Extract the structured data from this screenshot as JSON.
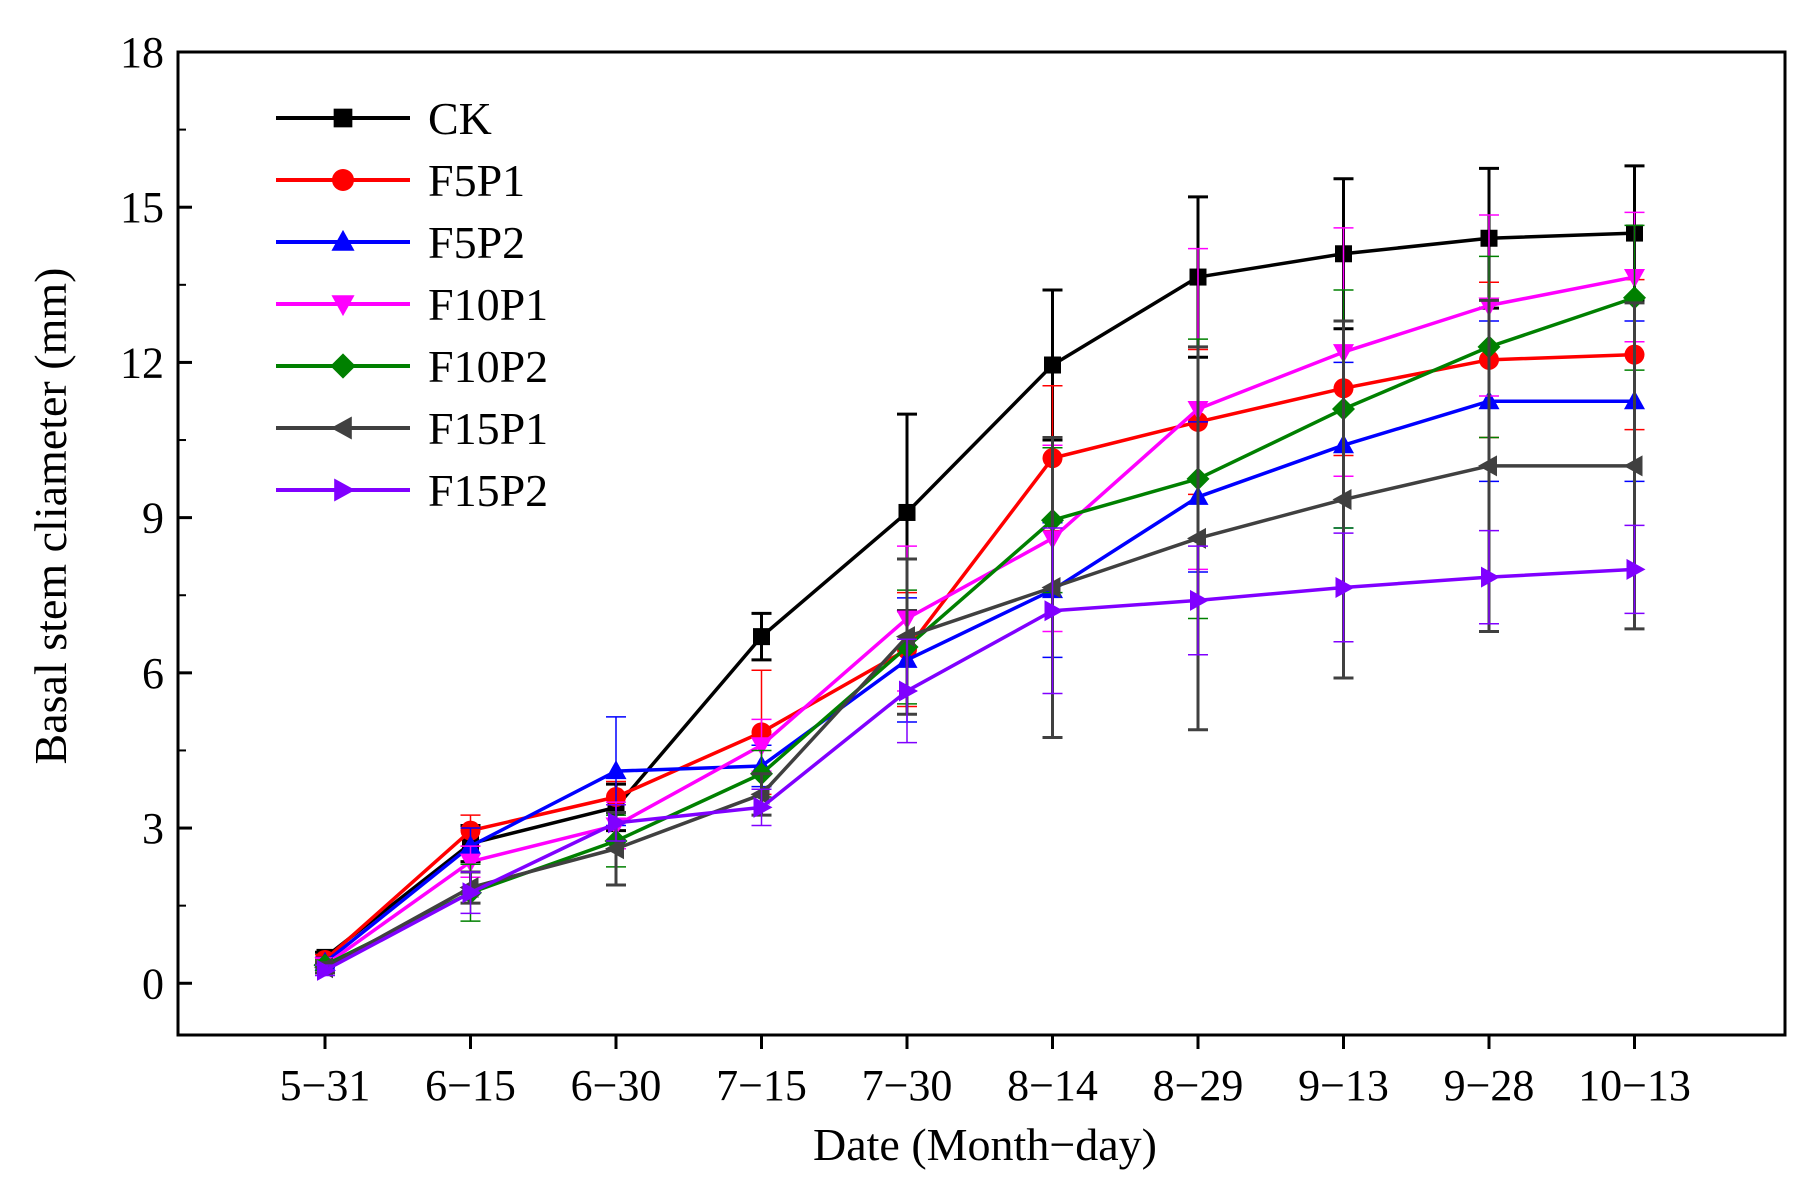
{
  "chart_data": {
    "type": "line",
    "xlabel": "Date (Month−day)",
    "ylabel": "Basal stem cliameter (mm)",
    "ylim": [
      -1,
      18
    ],
    "yticks": [
      0,
      3,
      6,
      9,
      12,
      15,
      18
    ],
    "ytick_labels": [
      "0",
      "3",
      "6",
      "9",
      "12",
      "15",
      "18"
    ],
    "categories": [
      "5−31",
      "6−15",
      "6−30",
      "7−15",
      "7−30",
      "8−14",
      "8−29",
      "9−13",
      "9−28",
      "10−13"
    ],
    "legend_position": "top-left",
    "series": [
      {
        "name": "CK",
        "color": "#000000",
        "marker": "square",
        "values": [
          0.5,
          2.7,
          3.4,
          6.7,
          9.1,
          11.95,
          13.65,
          14.1,
          14.4,
          14.5
        ],
        "errors": [
          0.1,
          0.35,
          0.45,
          0.45,
          1.9,
          1.45,
          1.55,
          1.45,
          1.35,
          1.3
        ]
      },
      {
        "name": "F5P1",
        "color": "#ff0000",
        "marker": "circle",
        "values": [
          0.45,
          2.95,
          3.6,
          4.85,
          6.45,
          10.15,
          10.85,
          11.5,
          12.05,
          12.15
        ],
        "errors": [
          0.1,
          0.3,
          0.3,
          1.2,
          1.1,
          1.4,
          1.4,
          1.3,
          1.5,
          1.45
        ]
      },
      {
        "name": "F5P2",
        "color": "#0000ff",
        "marker": "triangle-up",
        "values": [
          0.4,
          2.65,
          4.1,
          4.2,
          6.25,
          7.6,
          9.4,
          10.4,
          11.25,
          11.25
        ],
        "errors": [
          0.1,
          0.35,
          1.05,
          0.4,
          1.2,
          1.3,
          1.45,
          1.6,
          1.55,
          1.55
        ]
      },
      {
        "name": "F10P1",
        "color": "#ff00ff",
        "marker": "triangle-down",
        "values": [
          0.35,
          2.35,
          3.05,
          4.6,
          7.05,
          8.6,
          11.1,
          12.2,
          13.1,
          13.65
        ],
        "errors": [
          0.1,
          0.3,
          0.45,
          0.5,
          1.4,
          1.8,
          3.1,
          2.4,
          1.75,
          1.25
        ]
      },
      {
        "name": "F10P2",
        "color": "#008000",
        "marker": "diamond",
        "values": [
          0.35,
          1.75,
          2.75,
          4.05,
          6.5,
          8.95,
          9.75,
          11.1,
          12.3,
          13.25
        ],
        "errors": [
          0.1,
          0.55,
          0.5,
          0.45,
          1.1,
          1.4,
          2.7,
          2.3,
          1.75,
          1.4
        ]
      },
      {
        "name": "F15P1",
        "color": "#404040",
        "marker": "triangle-left",
        "values": [
          0.3,
          1.85,
          2.6,
          3.65,
          6.7,
          7.65,
          8.6,
          9.35,
          10.0,
          10.0
        ],
        "errors": [
          0.1,
          0.3,
          0.7,
          0.4,
          1.5,
          2.9,
          3.7,
          3.45,
          3.2,
          3.15
        ]
      },
      {
        "name": "F15P2",
        "color": "#8000ff",
        "marker": "triangle-right",
        "values": [
          0.25,
          1.75,
          3.1,
          3.4,
          5.65,
          7.2,
          7.4,
          7.65,
          7.85,
          8.0
        ],
        "errors": [
          0.1,
          0.4,
          0.35,
          0.35,
          1.0,
          1.6,
          1.05,
          1.05,
          0.9,
          0.85
        ]
      }
    ]
  }
}
